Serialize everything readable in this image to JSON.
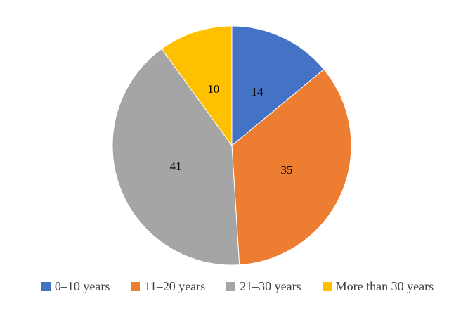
{
  "chart_data": {
    "type": "pie",
    "categories": [
      "0–10 years",
      "11–20 years",
      "21–30 years",
      "More than 30 years"
    ],
    "values": [
      14,
      35,
      41,
      10
    ],
    "data_labels": [
      "14",
      "35",
      "41",
      "10"
    ],
    "colors": [
      "#4472C4",
      "#ED7D31",
      "#A5A5A5",
      "#FFC000"
    ],
    "title": "",
    "start_angle_deg": 0,
    "direction": "clockwise",
    "legend_position": "bottom",
    "label_text_color": "#000000",
    "legend_text_color": "#404040",
    "background_color": "#ffffff"
  }
}
